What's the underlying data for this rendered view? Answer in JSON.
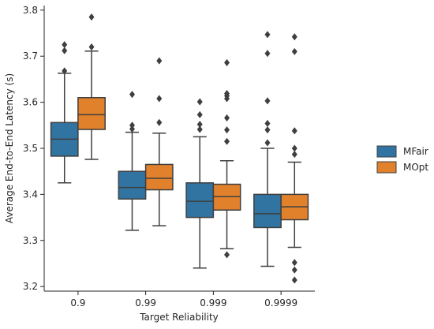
{
  "chart_data": {
    "type": "box",
    "xlabel": "Target Reliability",
    "ylabel": "Average End-to-End Latency (s)",
    "categories": [
      "0.9",
      "0.99",
      "0.999",
      "0.9999"
    ],
    "ylim": [
      3.19,
      3.81
    ],
    "yticks": [
      3.2,
      3.3,
      3.4,
      3.5,
      3.6,
      3.7,
      3.8
    ],
    "ytick_labels": [
      "3.2",
      "3.3",
      "3.4",
      "3.5",
      "3.6",
      "3.7",
      "3.8"
    ],
    "legend_position": "right",
    "series": [
      {
        "name": "MFair",
        "color": "#3274a1",
        "boxes": [
          {
            "whisker_low": 3.425,
            "q1": 3.483,
            "median": 3.52,
            "q3": 3.556,
            "whisker_high": 3.663,
            "outliers": [
              3.668,
              3.712,
              3.725
            ]
          },
          {
            "whisker_low": 3.322,
            "q1": 3.39,
            "median": 3.415,
            "q3": 3.45,
            "whisker_high": 3.535,
            "outliers": [
              3.542,
              3.55,
              3.617
            ]
          },
          {
            "whisker_low": 3.24,
            "q1": 3.35,
            "median": 3.385,
            "q3": 3.425,
            "whisker_high": 3.525,
            "outliers": [
              3.541,
              3.552,
              3.573,
              3.601
            ]
          },
          {
            "whisker_low": 3.244,
            "q1": 3.328,
            "median": 3.358,
            "q3": 3.4,
            "whisker_high": 3.5,
            "outliers": [
              3.512,
              3.54,
              3.554,
              3.603,
              3.706,
              3.747
            ]
          }
        ]
      },
      {
        "name": "MOpt",
        "color": "#e1812c",
        "boxes": [
          {
            "whisker_low": 3.476,
            "q1": 3.541,
            "median": 3.573,
            "q3": 3.61,
            "whisker_high": 3.711,
            "outliers": [
              3.72,
              3.785
            ]
          },
          {
            "whisker_low": 3.332,
            "q1": 3.41,
            "median": 3.435,
            "q3": 3.465,
            "whisker_high": 3.533,
            "outliers": [
              3.556,
              3.608,
              3.69
            ]
          },
          {
            "whisker_low": 3.282,
            "q1": 3.366,
            "median": 3.395,
            "q3": 3.422,
            "whisker_high": 3.473,
            "outliers": [
              3.269,
              3.515,
              3.54,
              3.566,
              3.608,
              3.614,
              3.619,
              3.686
            ]
          },
          {
            "whisker_low": 3.285,
            "q1": 3.345,
            "median": 3.373,
            "q3": 3.4,
            "whisker_high": 3.47,
            "outliers": [
              3.214,
              3.236,
              3.252,
              3.487,
              3.5,
              3.538,
              3.71,
              3.742
            ]
          }
        ]
      }
    ]
  }
}
